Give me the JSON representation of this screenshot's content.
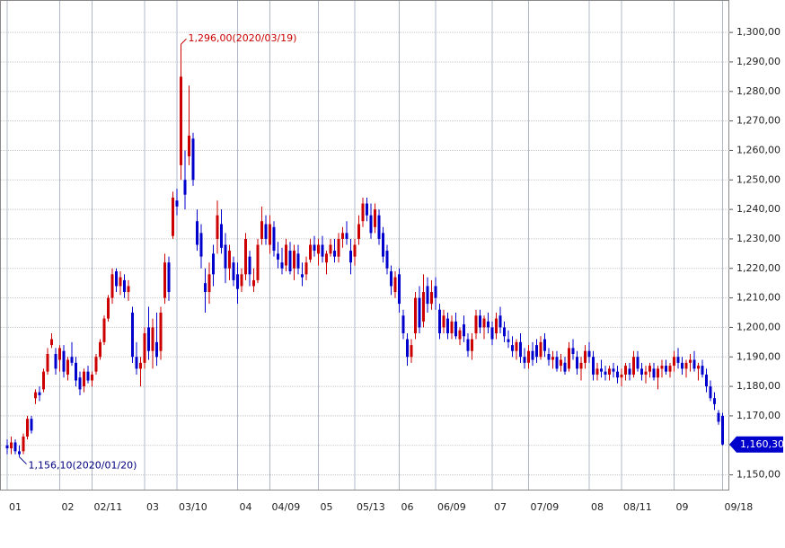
{
  "chart_data": {
    "type": "candlestick",
    "categories": [
      "01",
      null,
      null,
      null,
      null,
      null,
      null,
      null,
      null,
      null,
      null,
      null,
      null,
      "02",
      null,
      null,
      null,
      null,
      null,
      null,
      null,
      "02/11",
      null,
      null,
      null,
      null,
      null,
      null,
      null,
      null,
      null,
      null,
      null,
      null,
      "03",
      null,
      null,
      null,
      null,
      null,
      null,
      null,
      "03/10",
      null,
      null,
      null,
      null,
      null,
      null,
      null,
      null,
      null,
      null,
      null,
      null,
      null,
      null,
      "04",
      null,
      null,
      null,
      null,
      null,
      null,
      null,
      "04/09",
      null,
      null,
      null,
      null,
      null,
      null,
      null,
      null,
      null,
      null,
      null,
      "05",
      null,
      null,
      null,
      null,
      null,
      null,
      null,
      null,
      "05/13",
      null,
      null,
      null,
      null,
      null,
      null,
      null,
      null,
      null,
      null,
      "06",
      null,
      null,
      null,
      null,
      null,
      null,
      null,
      null,
      "06/09",
      null,
      null,
      null,
      null,
      null,
      null,
      null,
      null,
      null,
      null,
      null,
      null,
      null,
      "07",
      null,
      null,
      null,
      null,
      null,
      null,
      null,
      null,
      "07/09",
      null,
      null,
      null,
      null,
      null,
      null,
      null,
      null,
      null,
      null,
      null,
      null,
      null,
      null,
      "08",
      null,
      null,
      null,
      null,
      null,
      null,
      null,
      "08/11",
      null,
      null,
      null,
      null,
      null,
      null,
      null,
      null,
      null,
      null,
      null,
      null,
      "09",
      null,
      null,
      null,
      null,
      null,
      null,
      null,
      null,
      null,
      null,
      null,
      "09/18"
    ],
    "candles": [
      [
        1160,
        1162,
        1157,
        1159
      ],
      [
        1159,
        1163,
        1157,
        1161
      ],
      [
        1161,
        1162,
        1157,
        1158
      ],
      [
        1158,
        1160,
        1156.1,
        1157
      ],
      [
        1158,
        1164,
        1157,
        1163
      ],
      [
        1163,
        1170,
        1162,
        1169
      ],
      [
        1169,
        1170,
        1164,
        1165
      ],
      [
        1176,
        1179,
        1174,
        1178
      ],
      [
        1178,
        1180,
        1175,
        1177
      ],
      [
        1179,
        1186,
        1178,
        1185
      ],
      [
        1185,
        1193,
        1184,
        1191
      ],
      [
        1194,
        1198,
        1193,
        1196
      ],
      [
        1191,
        1193,
        1184,
        1186
      ],
      [
        1189,
        1194,
        1185,
        1193
      ],
      [
        1192,
        1194,
        1183,
        1185
      ],
      [
        1184,
        1190,
        1182,
        1189
      ],
      [
        1190,
        1195,
        1187,
        1188
      ],
      [
        1188,
        1190,
        1180,
        1182
      ],
      [
        1183,
        1185,
        1177,
        1179
      ],
      [
        1180,
        1186,
        1178,
        1185
      ],
      [
        1185,
        1187,
        1181,
        1182
      ],
      [
        1182,
        1185,
        1180,
        1184
      ],
      [
        1185,
        1191,
        1184,
        1190
      ],
      [
        1190,
        1196,
        1189,
        1195
      ],
      [
        1195,
        1204,
        1194,
        1203
      ],
      [
        1203,
        1211,
        1202,
        1210
      ],
      [
        1210,
        1220,
        1208,
        1218
      ],
      [
        1219,
        1220,
        1212,
        1214
      ],
      [
        1214,
        1219,
        1211,
        1217
      ],
      [
        1216,
        1218,
        1210,
        1212
      ],
      [
        1212,
        1216,
        1209,
        1214
      ],
      [
        1205,
        1207,
        1188,
        1190
      ],
      [
        1190,
        1195,
        1184,
        1186
      ],
      [
        1186,
        1190,
        1180,
        1188
      ],
      [
        1188,
        1200,
        1186,
        1198
      ],
      [
        1200,
        1207,
        1189,
        1192
      ],
      [
        1192,
        1203,
        1186,
        1200
      ],
      [
        1195,
        1205,
        1187,
        1190
      ],
      [
        1192,
        1207,
        1189,
        1205
      ],
      [
        1210,
        1225,
        1208,
        1222
      ],
      [
        1222,
        1224,
        1209,
        1212
      ],
      [
        1231,
        1246,
        1230,
        1244
      ],
      [
        1243,
        1247,
        1238,
        1241
      ],
      [
        1255,
        1296,
        1250,
        1285
      ],
      [
        1250,
        1260,
        1240,
        1245
      ],
      [
        1258,
        1282,
        1255,
        1265
      ],
      [
        1264,
        1266,
        1248,
        1250
      ],
      [
        1236,
        1240,
        1226,
        1228
      ],
      [
        1232,
        1235,
        1220,
        1224
      ],
      [
        1215,
        1220,
        1205,
        1212
      ],
      [
        1212,
        1222,
        1208,
        1218
      ],
      [
        1225,
        1228,
        1214,
        1218
      ],
      [
        1230,
        1243,
        1225,
        1238
      ],
      [
        1235,
        1240,
        1225,
        1227
      ],
      [
        1228,
        1232,
        1215,
        1220
      ],
      [
        1220,
        1228,
        1216,
        1226
      ],
      [
        1222,
        1224,
        1214,
        1216
      ],
      [
        1218,
        1222,
        1208,
        1213
      ],
      [
        1214,
        1220,
        1212,
        1218
      ],
      [
        1218,
        1232,
        1216,
        1230
      ],
      [
        1224,
        1226,
        1214,
        1218
      ],
      [
        1214,
        1220,
        1212,
        1216
      ],
      [
        1216,
        1230,
        1215,
        1228
      ],
      [
        1230,
        1241,
        1228,
        1236
      ],
      [
        1235,
        1238,
        1228,
        1230
      ],
      [
        1228,
        1238,
        1225,
        1235
      ],
      [
        1234,
        1236,
        1224,
        1226
      ],
      [
        1225,
        1229,
        1220,
        1223
      ],
      [
        1222,
        1227,
        1218,
        1220
      ],
      [
        1221,
        1230,
        1219,
        1228
      ],
      [
        1226,
        1229,
        1218,
        1219
      ],
      [
        1220,
        1228,
        1216,
        1226
      ],
      [
        1225,
        1228,
        1218,
        1220
      ],
      [
        1218,
        1222,
        1214,
        1217
      ],
      [
        1218,
        1224,
        1216,
        1222
      ],
      [
        1223,
        1230,
        1222,
        1228
      ],
      [
        1228,
        1231,
        1224,
        1226
      ],
      [
        1225,
        1230,
        1221,
        1228
      ],
      [
        1228,
        1231,
        1222,
        1224
      ],
      [
        1222,
        1226,
        1218,
        1225
      ],
      [
        1225,
        1230,
        1224,
        1228
      ],
      [
        1226,
        1230,
        1222,
        1224
      ],
      [
        1224,
        1232,
        1222,
        1230
      ],
      [
        1230,
        1234,
        1227,
        1232
      ],
      [
        1232,
        1236,
        1228,
        1230
      ],
      [
        1226,
        1230,
        1218,
        1222
      ],
      [
        1224,
        1230,
        1221,
        1228
      ],
      [
        1230,
        1238,
        1228,
        1235
      ],
      [
        1236,
        1244,
        1234,
        1242
      ],
      [
        1242,
        1244,
        1236,
        1238
      ],
      [
        1238,
        1242,
        1230,
        1232
      ],
      [
        1234,
        1242,
        1232,
        1240
      ],
      [
        1238,
        1240,
        1228,
        1230
      ],
      [
        1232,
        1234,
        1222,
        1224
      ],
      [
        1226,
        1228,
        1218,
        1220
      ],
      [
        1219,
        1221,
        1211,
        1214
      ],
      [
        1212,
        1219,
        1210,
        1217
      ],
      [
        1218,
        1220,
        1205,
        1208
      ],
      [
        1204,
        1206,
        1196,
        1198
      ],
      [
        1196,
        1198,
        1187,
        1190
      ],
      [
        1190,
        1196,
        1188,
        1194
      ],
      [
        1198,
        1212,
        1196,
        1210
      ],
      [
        1210,
        1214,
        1198,
        1200
      ],
      [
        1202,
        1218,
        1200,
        1212
      ],
      [
        1214,
        1217,
        1205,
        1208
      ],
      [
        1208,
        1216,
        1206,
        1212
      ],
      [
        1214,
        1217,
        1206,
        1210
      ],
      [
        1206,
        1208,
        1196,
        1198
      ],
      [
        1200,
        1206,
        1198,
        1204
      ],
      [
        1203,
        1205,
        1196,
        1198
      ],
      [
        1198,
        1204,
        1196,
        1202
      ],
      [
        1202,
        1205,
        1196,
        1197
      ],
      [
        1196,
        1200,
        1194,
        1199
      ],
      [
        1201,
        1204,
        1195,
        1197
      ],
      [
        1196,
        1198,
        1190,
        1192
      ],
      [
        1192,
        1198,
        1189,
        1196
      ],
      [
        1198,
        1206,
        1196,
        1204
      ],
      [
        1204,
        1206,
        1198,
        1200
      ],
      [
        1200,
        1204,
        1196,
        1203
      ],
      [
        1202,
        1205,
        1198,
        1200
      ],
      [
        1200,
        1202,
        1194,
        1196
      ],
      [
        1198,
        1205,
        1196,
        1203
      ],
      [
        1204,
        1207,
        1198,
        1200
      ],
      [
        1200,
        1202,
        1195,
        1197
      ],
      [
        1196,
        1199,
        1193,
        1195
      ],
      [
        1194,
        1197,
        1190,
        1192
      ],
      [
        1192,
        1196,
        1189,
        1195
      ],
      [
        1195,
        1198,
        1188,
        1190
      ],
      [
        1190,
        1193,
        1186,
        1188
      ],
      [
        1188,
        1194,
        1186,
        1192
      ],
      [
        1192,
        1195,
        1187,
        1189
      ],
      [
        1194,
        1196,
        1188,
        1190
      ],
      [
        1190,
        1197,
        1189,
        1195
      ],
      [
        1196,
        1198,
        1190,
        1192
      ],
      [
        1191,
        1193,
        1187,
        1189
      ],
      [
        1189,
        1192,
        1186,
        1190
      ],
      [
        1190,
        1192,
        1185,
        1186
      ],
      [
        1187,
        1191,
        1185,
        1189
      ],
      [
        1188,
        1190,
        1184,
        1185
      ],
      [
        1186,
        1195,
        1185,
        1193
      ],
      [
        1193,
        1196,
        1189,
        1191
      ],
      [
        1190,
        1192,
        1184,
        1186
      ],
      [
        1186,
        1190,
        1182,
        1188
      ],
      [
        1188,
        1194,
        1186,
        1192
      ],
      [
        1192,
        1195,
        1188,
        1190
      ],
      [
        1190,
        1192,
        1182,
        1184
      ],
      [
        1184,
        1188,
        1182,
        1186
      ],
      [
        1186,
        1189,
        1183,
        1185
      ],
      [
        1185,
        1187,
        1182,
        1184
      ],
      [
        1184,
        1187,
        1182,
        1186
      ],
      [
        1186,
        1188,
        1183,
        1185
      ],
      [
        1185,
        1187,
        1181,
        1183
      ],
      [
        1183,
        1186,
        1180,
        1184
      ],
      [
        1184,
        1188,
        1182,
        1187
      ],
      [
        1186,
        1188,
        1182,
        1184
      ],
      [
        1184,
        1192,
        1183,
        1190
      ],
      [
        1190,
        1192,
        1185,
        1186
      ],
      [
        1186,
        1188,
        1182,
        1184
      ],
      [
        1184,
        1187,
        1181,
        1185
      ],
      [
        1185,
        1188,
        1183,
        1187
      ],
      [
        1186,
        1188,
        1182,
        1183
      ],
      [
        1183,
        1187,
        1179,
        1186
      ],
      [
        1186,
        1189,
        1183,
        1187
      ],
      [
        1187,
        1189,
        1184,
        1185
      ],
      [
        1185,
        1188,
        1183,
        1187
      ],
      [
        1187,
        1192,
        1185,
        1190
      ],
      [
        1190,
        1193,
        1186,
        1188
      ],
      [
        1188,
        1190,
        1184,
        1186
      ],
      [
        1186,
        1189,
        1183,
        1188
      ],
      [
        1188,
        1191,
        1185,
        1189
      ],
      [
        1189,
        1192,
        1185,
        1186
      ],
      [
        1186,
        1188,
        1182,
        1187
      ],
      [
        1187,
        1189,
        1183,
        1184
      ],
      [
        1184,
        1186,
        1178,
        1180
      ],
      [
        1180,
        1182,
        1175,
        1176
      ],
      [
        1176,
        1178,
        1172,
        1174
      ],
      [
        1171,
        1172,
        1167,
        1168
      ],
      [
        1170,
        1171,
        1160,
        1160.3
      ]
    ],
    "up_color": "#cc0000",
    "down_color": "#0000cc",
    "ylim": [
      1145,
      1311
    ],
    "yticks": [
      {
        "value": 1150,
        "label": "1,150,00"
      },
      {
        "value": 1160,
        "label": "1,160,00"
      },
      {
        "value": 1170,
        "label": "1,170,00"
      },
      {
        "value": 1180,
        "label": "1,180,00"
      },
      {
        "value": 1190,
        "label": "1,190,00"
      },
      {
        "value": 1200,
        "label": "1,200,00"
      },
      {
        "value": 1210,
        "label": "1,210,00"
      },
      {
        "value": 1220,
        "label": "1,220,00"
      },
      {
        "value": 1230,
        "label": "1,230,00"
      },
      {
        "value": 1240,
        "label": "1,240,00"
      },
      {
        "value": 1250,
        "label": "1,250,00"
      },
      {
        "value": 1260,
        "label": "1,260,00"
      },
      {
        "value": 1270,
        "label": "1,270,00"
      },
      {
        "value": 1280,
        "label": "1,280,00"
      },
      {
        "value": 1290,
        "label": "1,290,00"
      },
      {
        "value": 1300,
        "label": "1,300,00"
      }
    ],
    "grid": true,
    "annotations": {
      "max": "1,296,00(2020/03/19)",
      "min": "1,156,10(2020/01/20)",
      "last": "1,160,30"
    }
  }
}
